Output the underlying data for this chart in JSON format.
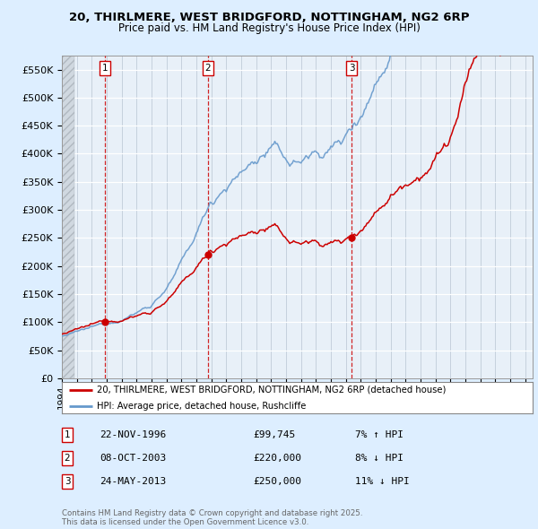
{
  "title_line1": "20, THIRLMERE, WEST BRIDGFORD, NOTTINGHAM, NG2 6RP",
  "title_line2": "Price paid vs. HM Land Registry's House Price Index (HPI)",
  "ylim": [
    0,
    575000
  ],
  "yticks": [
    0,
    50000,
    100000,
    150000,
    200000,
    250000,
    300000,
    350000,
    400000,
    450000,
    500000,
    550000
  ],
  "ytick_labels": [
    "£0",
    "£50K",
    "£100K",
    "£150K",
    "£200K",
    "£250K",
    "£300K",
    "£350K",
    "£400K",
    "£450K",
    "£500K",
    "£550K"
  ],
  "xlim_start": 1994.0,
  "xlim_end": 2025.5,
  "hatch_end": 1994.83,
  "sale1_date": 1996.896,
  "sale1_price": 99745,
  "sale2_date": 2003.771,
  "sale2_price": 220000,
  "sale3_date": 2013.389,
  "sale3_price": 250000,
  "sale_color": "#cc0000",
  "hpi_color": "#6699cc",
  "legend_label_red": "20, THIRLMERE, WEST BRIDGFORD, NOTTINGHAM, NG2 6RP (detached house)",
  "legend_label_blue": "HPI: Average price, detached house, Rushcliffe",
  "table_rows": [
    {
      "num": "1",
      "date": "22-NOV-1996",
      "price": "£99,745",
      "hpi": "7% ↑ HPI"
    },
    {
      "num": "2",
      "date": "08-OCT-2003",
      "price": "£220,000",
      "hpi": "8% ↓ HPI"
    },
    {
      "num": "3",
      "date": "24-MAY-2013",
      "price": "£250,000",
      "hpi": "11% ↓ HPI"
    }
  ],
  "footnote": "Contains HM Land Registry data © Crown copyright and database right 2025.\nThis data is licensed under the Open Government Licence v3.0.",
  "bg_color": "#ddeeff",
  "plot_bg": "#ddeeff"
}
